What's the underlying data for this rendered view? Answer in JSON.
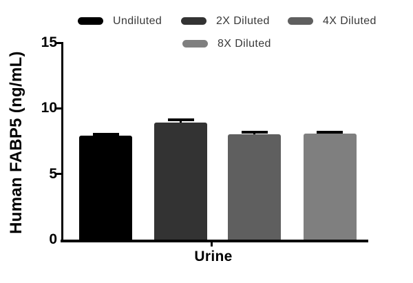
{
  "chart_data": {
    "type": "bar",
    "title": "",
    "categories": [
      "Urine"
    ],
    "series": [
      {
        "name": "Undiluted",
        "value": 7.9,
        "error_plus": 0.1,
        "color": "#000000"
      },
      {
        "name": "2X Diluted",
        "value": 8.9,
        "error_plus": 0.25,
        "color": "#333333"
      },
      {
        "name": "4X Diluted",
        "value": 8.0,
        "error_plus": 0.2,
        "color": "#5f5f5f"
      },
      {
        "name": "8X Diluted",
        "value": 8.1,
        "error_plus": 0.1,
        "color": "#7f7f7f"
      }
    ],
    "xlabel": "Urine",
    "ylabel": "Human FABP5 (ng/mL)",
    "ylim": [
      0,
      15
    ],
    "yticks": [
      0,
      5,
      10,
      15
    ],
    "legend_position": "top",
    "grid": false,
    "error_bars": "upper-only-black-caps"
  }
}
